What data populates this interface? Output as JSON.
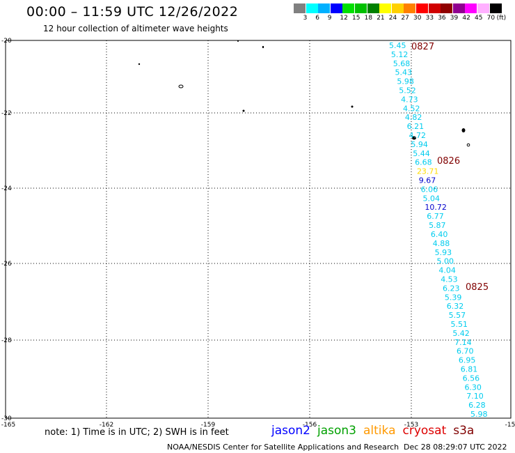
{
  "header": {
    "title": "00:00 – 11:59 UTC 12/26/2022",
    "subtitle": "12 hour collection of altimeter wave heights"
  },
  "legend": {
    "unit": "(ft)",
    "ticks": [
      "3",
      "6",
      "9",
      "12",
      "15",
      "18",
      "21",
      "24",
      "27",
      "30",
      "33",
      "36",
      "39",
      "42",
      "45",
      "70"
    ],
    "colors": [
      "#808080",
      "#00ffff",
      "#00b0ff",
      "#0000ff",
      "#00e000",
      "#00c000",
      "#008000",
      "#ffff00",
      "#ffd000",
      "#ff8000",
      "#ff0000",
      "#d00000",
      "#900000",
      "#900090",
      "#ff00ff",
      "#ffb0ff",
      "#000000"
    ]
  },
  "map": {
    "lon_ticks": [
      "-165",
      "-162",
      "-159",
      "-156",
      "-153",
      "-15"
    ],
    "lat_ticks": [
      "-20",
      "-22",
      "-24",
      "-26",
      "-28",
      "-30"
    ],
    "date_labels": [
      {
        "text": "0827",
        "color": "#800000"
      },
      {
        "text": "0826",
        "color": "#800000"
      },
      {
        "text": "0825",
        "color": "#800000"
      }
    ],
    "track": [
      {
        "v": "5.45",
        "c": "#00ccee"
      },
      {
        "v": "5.12",
        "c": "#00ccee"
      },
      {
        "v": "5.68",
        "c": "#00ccee"
      },
      {
        "v": "5.43",
        "c": "#00ccee"
      },
      {
        "v": "5.98",
        "c": "#00ccee"
      },
      {
        "v": "5.52",
        "c": "#00ccee"
      },
      {
        "v": "4.73",
        "c": "#00ccee"
      },
      {
        "v": "4.52",
        "c": "#00ccee"
      },
      {
        "v": "4.82",
        "c": "#00ccee"
      },
      {
        "v": "6.21",
        "c": "#00ccee"
      },
      {
        "v": "4.72",
        "c": "#00ccee"
      },
      {
        "v": "5.94",
        "c": "#00ccee"
      },
      {
        "v": "5.44",
        "c": "#00ccee"
      },
      {
        "v": "6.68",
        "c": "#00ccee"
      },
      {
        "v": "23.71",
        "c": "#ffdd00"
      },
      {
        "v": "9.67",
        "c": "#0000cc"
      },
      {
        "v": "6.06",
        "c": "#00ccee"
      },
      {
        "v": "5.04",
        "c": "#00ccee"
      },
      {
        "v": "10.72",
        "c": "#0000cc"
      },
      {
        "v": "6.77",
        "c": "#00ccee"
      },
      {
        "v": "5.87",
        "c": "#00ccee"
      },
      {
        "v": "6.40",
        "c": "#00ccee"
      },
      {
        "v": "4.88",
        "c": "#00ccee"
      },
      {
        "v": "5.93",
        "c": "#00ccee"
      },
      {
        "v": "5.00",
        "c": "#00ccee"
      },
      {
        "v": "4.04",
        "c": "#00ccee"
      },
      {
        "v": "4.53",
        "c": "#00ccee"
      },
      {
        "v": "6.23",
        "c": "#00ccee"
      },
      {
        "v": "5.39",
        "c": "#00ccee"
      },
      {
        "v": "6.32",
        "c": "#00ccee"
      },
      {
        "v": "5.57",
        "c": "#00ccee"
      },
      {
        "v": "5.51",
        "c": "#00ccee"
      },
      {
        "v": "5.42",
        "c": "#00ccee"
      },
      {
        "v": "7.14",
        "c": "#00ccee"
      },
      {
        "v": "6.70",
        "c": "#00ccee"
      },
      {
        "v": "6.95",
        "c": "#00ccee"
      },
      {
        "v": "6.81",
        "c": "#00ccee"
      },
      {
        "v": "6.56",
        "c": "#00ccee"
      },
      {
        "v": "6.30",
        "c": "#00ccee"
      },
      {
        "v": "7.10",
        "c": "#00ccee"
      },
      {
        "v": "6.28",
        "c": "#00ccee"
      },
      {
        "v": "5.98",
        "c": "#00ccee"
      }
    ]
  },
  "footer": {
    "note": "note: 1) Time is in UTC; 2) SWH is in feet",
    "missions": [
      {
        "name": "jason2",
        "color": "#0000ff"
      },
      {
        "name": "jason3",
        "color": "#00a000"
      },
      {
        "name": "altika",
        "color": "#ff9900"
      },
      {
        "name": "cryosat",
        "color": "#dd0000"
      },
      {
        "name": "s3a",
        "color": "#800000"
      }
    ],
    "credit": "NOAA/NESDIS Center for Satellite Applications and Research",
    "timestamp": "Dec 28 08:29:07 UTC 2022"
  }
}
